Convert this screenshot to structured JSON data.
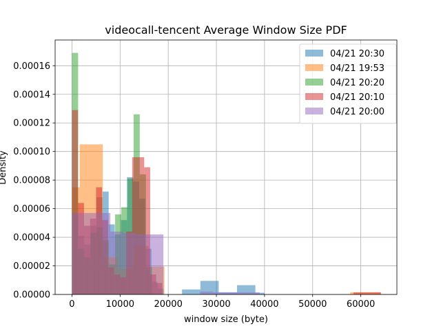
{
  "chart_data": {
    "type": "bar",
    "title": "videocall-tencent Average Window Size PDF",
    "xlabel": "window size (byte)",
    "ylabel": "Density",
    "xlim": [
      -3500,
      67500
    ],
    "ylim": [
      0,
      0.000178
    ],
    "xticks": [
      0,
      10000,
      20000,
      30000,
      40000,
      50000,
      60000
    ],
    "xtick_labels": [
      "0",
      "10000",
      "20000",
      "30000",
      "40000",
      "50000",
      "60000"
    ],
    "yticks": [
      0,
      2e-05,
      4e-05,
      6e-05,
      8e-05,
      0.0001,
      0.00012,
      0.00014,
      0.00016
    ],
    "ytick_labels": [
      "0.00000",
      "0.00002",
      "0.00004",
      "0.00006",
      "0.00008",
      "0.00010",
      "0.00012",
      "0.00014",
      "0.00016"
    ],
    "grid": true,
    "legend_position": "top-right",
    "alpha": 0.5,
    "series": [
      {
        "name": "04/21 20:30",
        "color": "#1f77b4",
        "bins": [
          [
            0,
            1270,
            5.7e-05
          ],
          [
            1270,
            2540,
            4.1e-05
          ],
          [
            2540,
            3810,
            3.5e-05
          ],
          [
            3810,
            5080,
            4.8e-05
          ],
          [
            5080,
            6350,
            6.8e-05
          ],
          [
            6350,
            7620,
            7.2e-05
          ],
          [
            7620,
            8890,
            4.9e-05
          ],
          [
            8890,
            10160,
            4.2e-05
          ],
          [
            10160,
            11430,
            5.2e-05
          ],
          [
            11430,
            12700,
            8.2e-05
          ],
          [
            12700,
            13970,
            7.9e-05
          ],
          [
            13970,
            15240,
            6.7e-05
          ],
          [
            15240,
            16510,
            3.2e-05
          ],
          [
            16510,
            17780,
            9e-06
          ],
          [
            17780,
            19050,
            4e-06
          ],
          [
            22860,
            26670,
            3.5e-06
          ],
          [
            26670,
            30480,
            9.5e-06
          ],
          [
            30480,
            34290,
            1.5e-06
          ],
          [
            34290,
            38100,
            6.5e-06
          ],
          [
            38100,
            40000,
            1.2e-06
          ]
        ]
      },
      {
        "name": "04/21 19:53",
        "color": "#ff7f0e",
        "bins": [
          [
            0,
            1600,
            7.5e-05
          ],
          [
            1600,
            6400,
            0.000105
          ],
          [
            6400,
            9600,
            2.6e-05
          ],
          [
            9600,
            12800,
            1.8e-05
          ],
          [
            12800,
            16000,
            3.4e-05
          ],
          [
            16000,
            19200,
            1.95e-05
          ],
          [
            57800,
            64100,
            1.5e-06
          ]
        ]
      },
      {
        "name": "04/21 20:20",
        "color": "#2ca02c",
        "bins": [
          [
            0,
            1280,
            0.000169
          ],
          [
            1280,
            2560,
            3.2e-05
          ],
          [
            2560,
            3840,
            2.6e-05
          ],
          [
            3840,
            5120,
            4.3e-05
          ],
          [
            5120,
            6400,
            4.7e-05
          ],
          [
            6400,
            7680,
            3.8e-05
          ],
          [
            7680,
            8960,
            2.1e-05
          ],
          [
            8960,
            10240,
            5.6e-05
          ],
          [
            10240,
            11520,
            6.1e-05
          ],
          [
            11520,
            12800,
            8.1e-05
          ],
          [
            12800,
            14080,
            0.000126
          ],
          [
            14080,
            15360,
            8.4e-05
          ],
          [
            15360,
            16640,
            1.9e-05
          ]
        ]
      },
      {
        "name": "04/21 20:10",
        "color": "#d62728",
        "bins": [
          [
            0,
            1250,
            0.000129
          ],
          [
            1250,
            2500,
            6.4e-05
          ],
          [
            2500,
            3750,
            4.8e-05
          ],
          [
            3750,
            5000,
            5.3e-05
          ],
          [
            5000,
            6250,
            7.5e-05
          ],
          [
            6250,
            7500,
            5.2e-05
          ],
          [
            7500,
            8750,
            1.9e-05
          ],
          [
            8750,
            10000,
            1.4e-05
          ],
          [
            10000,
            11250,
            1.2e-05
          ],
          [
            11250,
            12500,
            4.4e-05
          ],
          [
            12500,
            13750,
            9.6e-05
          ],
          [
            13750,
            15000,
            9.6e-05
          ],
          [
            15000,
            16250,
            8.9e-05
          ],
          [
            16250,
            17500,
            1.4e-05
          ],
          [
            17500,
            18750,
            8e-06
          ],
          [
            58500,
            64200,
            1.5e-06
          ]
        ]
      },
      {
        "name": "04/21 20:00",
        "color": "#9467bd",
        "bins": [
          [
            0,
            2660,
            5.7e-05
          ],
          [
            2660,
            5320,
            5.7e-05
          ],
          [
            5320,
            7980,
            5.7e-05
          ],
          [
            7980,
            10640,
            4.4e-05
          ],
          [
            10640,
            13300,
            4.3e-05
          ],
          [
            13300,
            15960,
            4.2e-05
          ],
          [
            15960,
            19000,
            4.2e-05
          ],
          [
            26600,
            29260,
            2e-06
          ],
          [
            29260,
            31920,
            1.5e-06
          ],
          [
            31920,
            34580,
            1.5e-06
          ],
          [
            34580,
            37240,
            1.5e-06
          ],
          [
            37240,
            39000,
            1.5e-06
          ]
        ]
      }
    ]
  }
}
